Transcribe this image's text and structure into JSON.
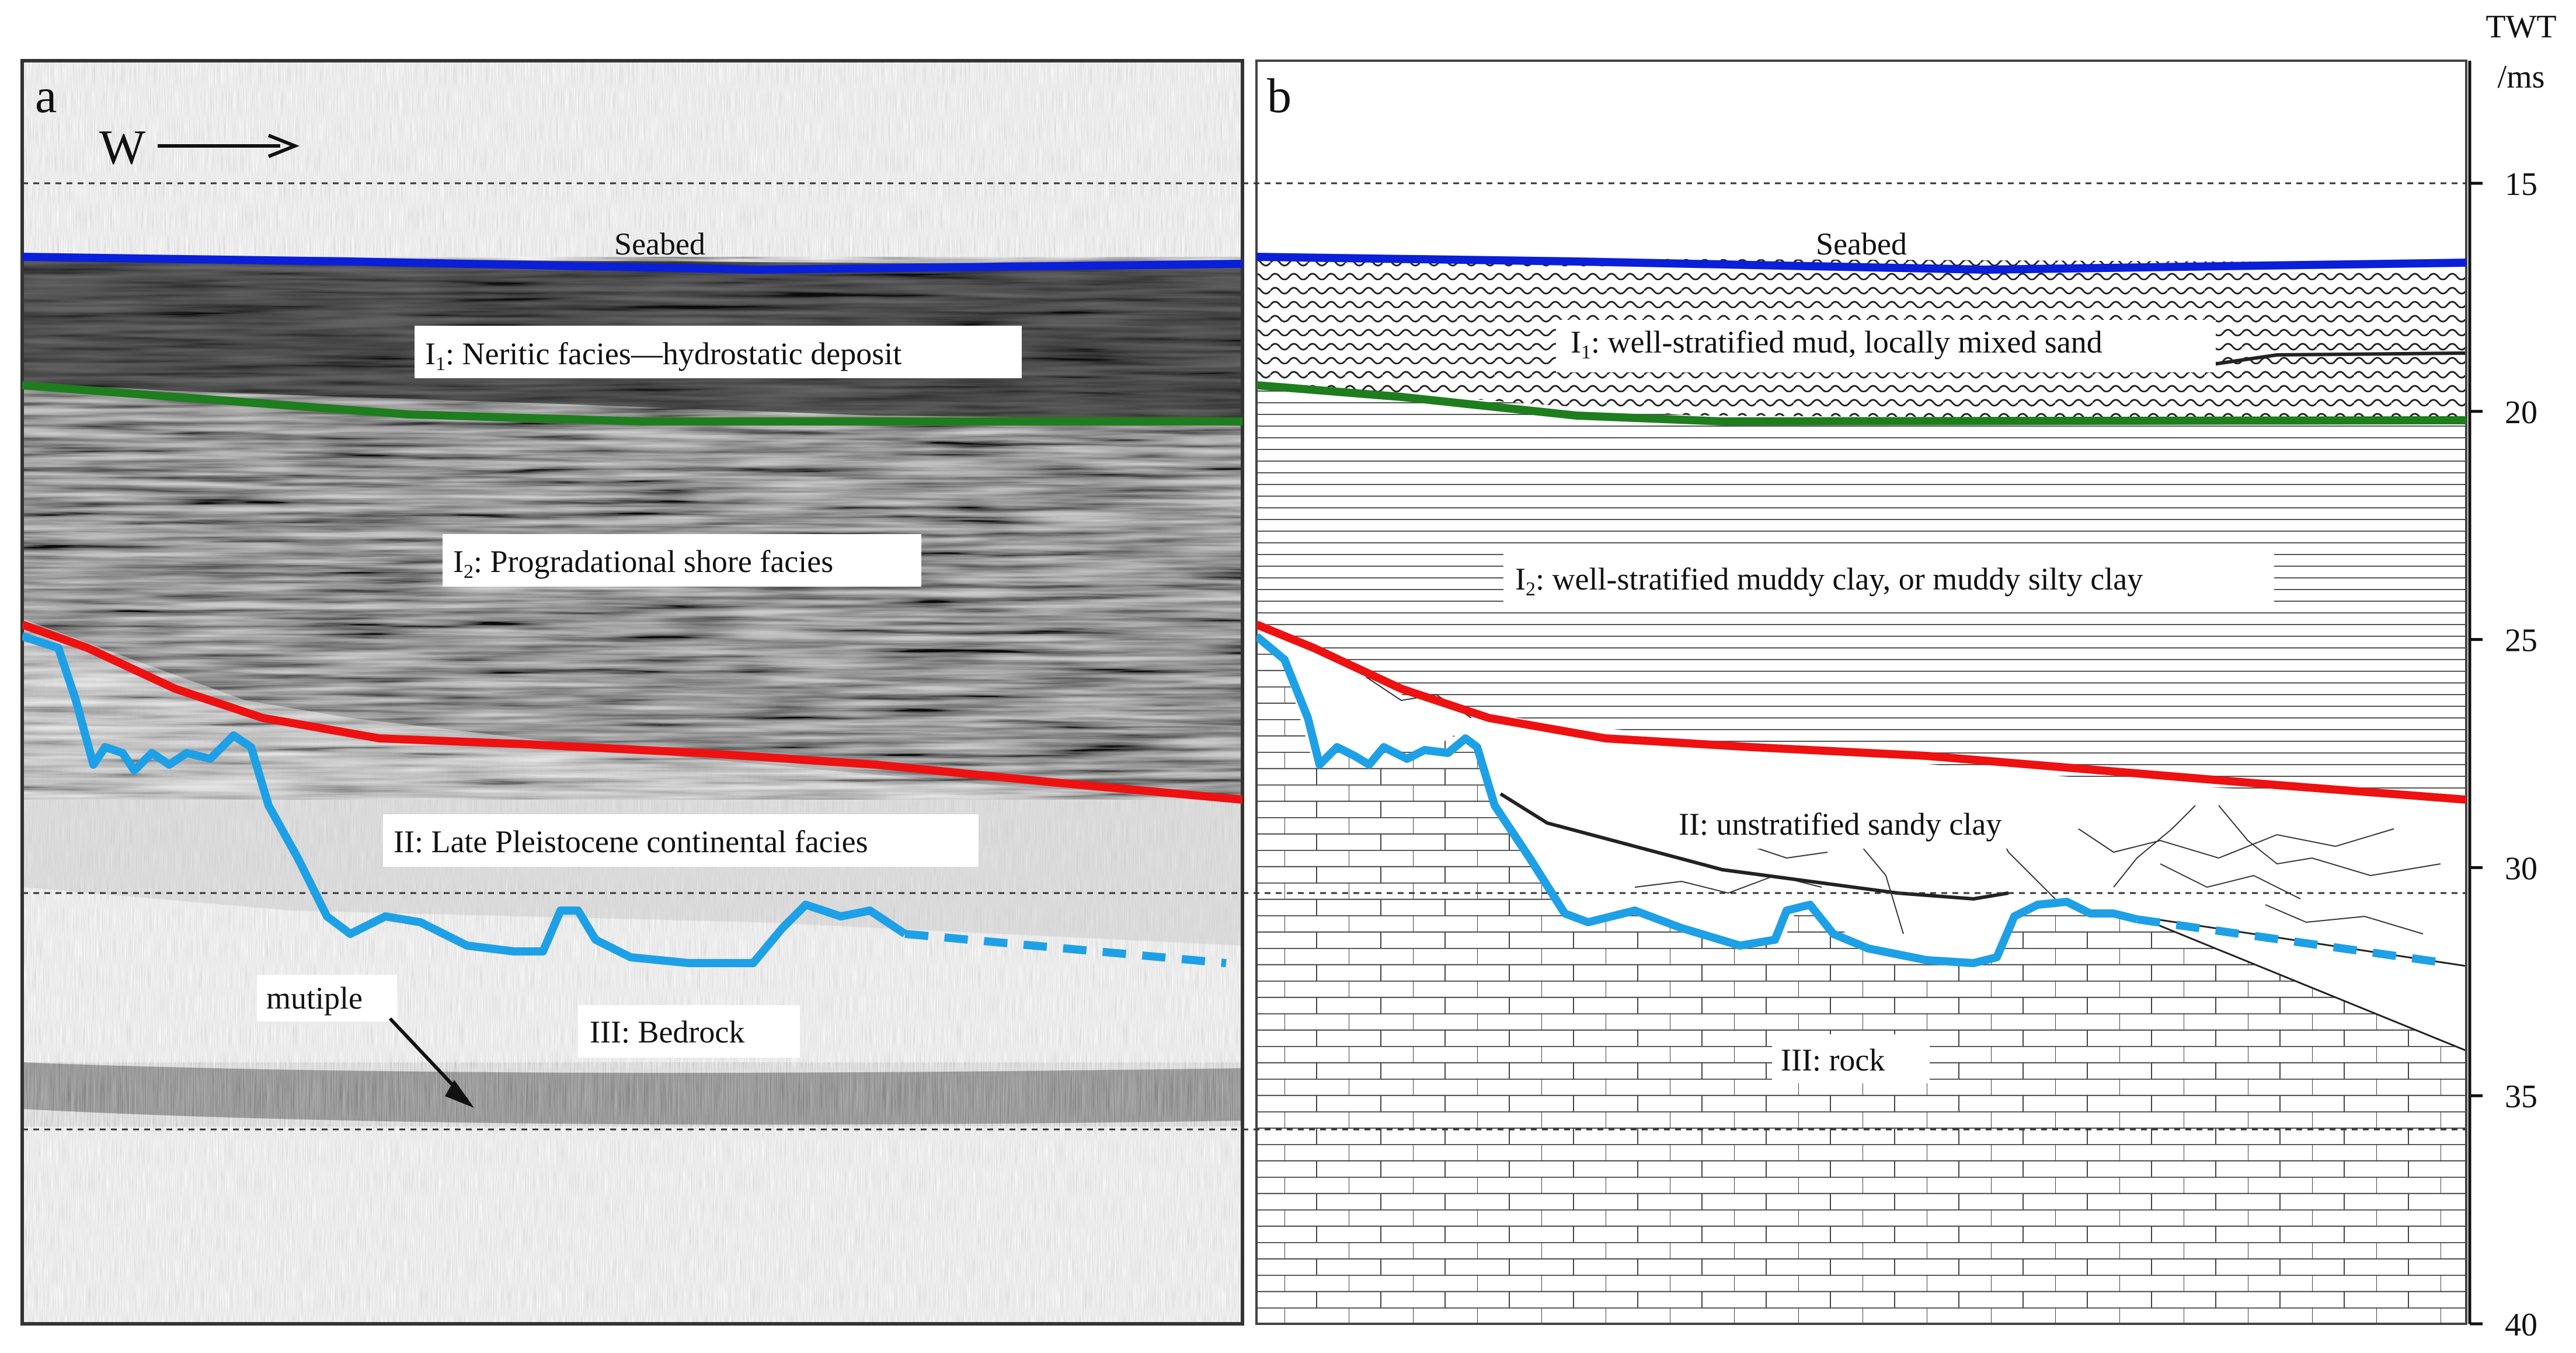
{
  "panel_a": {
    "letter": "a",
    "direction": "W",
    "labels": {
      "seabed": "Seabed",
      "i1_prefix": "I",
      "i1_sub": "1",
      "i1_text": ": Neritic facies—hydrostatic deposit",
      "i2_prefix": "I",
      "i2_sub": "2",
      "i2_text": ": Progradational shore facies",
      "ii": "II: Late Pleistocene continental facies",
      "iii": "III: Bedrock",
      "multiple": "mutiple"
    }
  },
  "panel_b": {
    "letter": "b",
    "labels": {
      "seabed": "Seabed",
      "i1_prefix": "I",
      "i1_sub": "1",
      "i1_text": ": well-stratified mud, locally mixed sand",
      "i2_prefix": "I",
      "i2_sub": "2",
      "i2_text": ": well-stratified muddy clay, or muddy silty clay",
      "ii": "II: unstratified sandy clay",
      "iii": "III: rock"
    }
  },
  "axis": {
    "title_line1": "TWT",
    "title_line2": "/ms",
    "ticks": [
      "15",
      "20",
      "25",
      "30",
      "35",
      "40"
    ]
  },
  "colors": {
    "seabed": "#0a1fd8",
    "i1_base": "#1e7d1e",
    "ii_base": "#ee1111",
    "bedrock_top": "#1ea0e6"
  }
}
